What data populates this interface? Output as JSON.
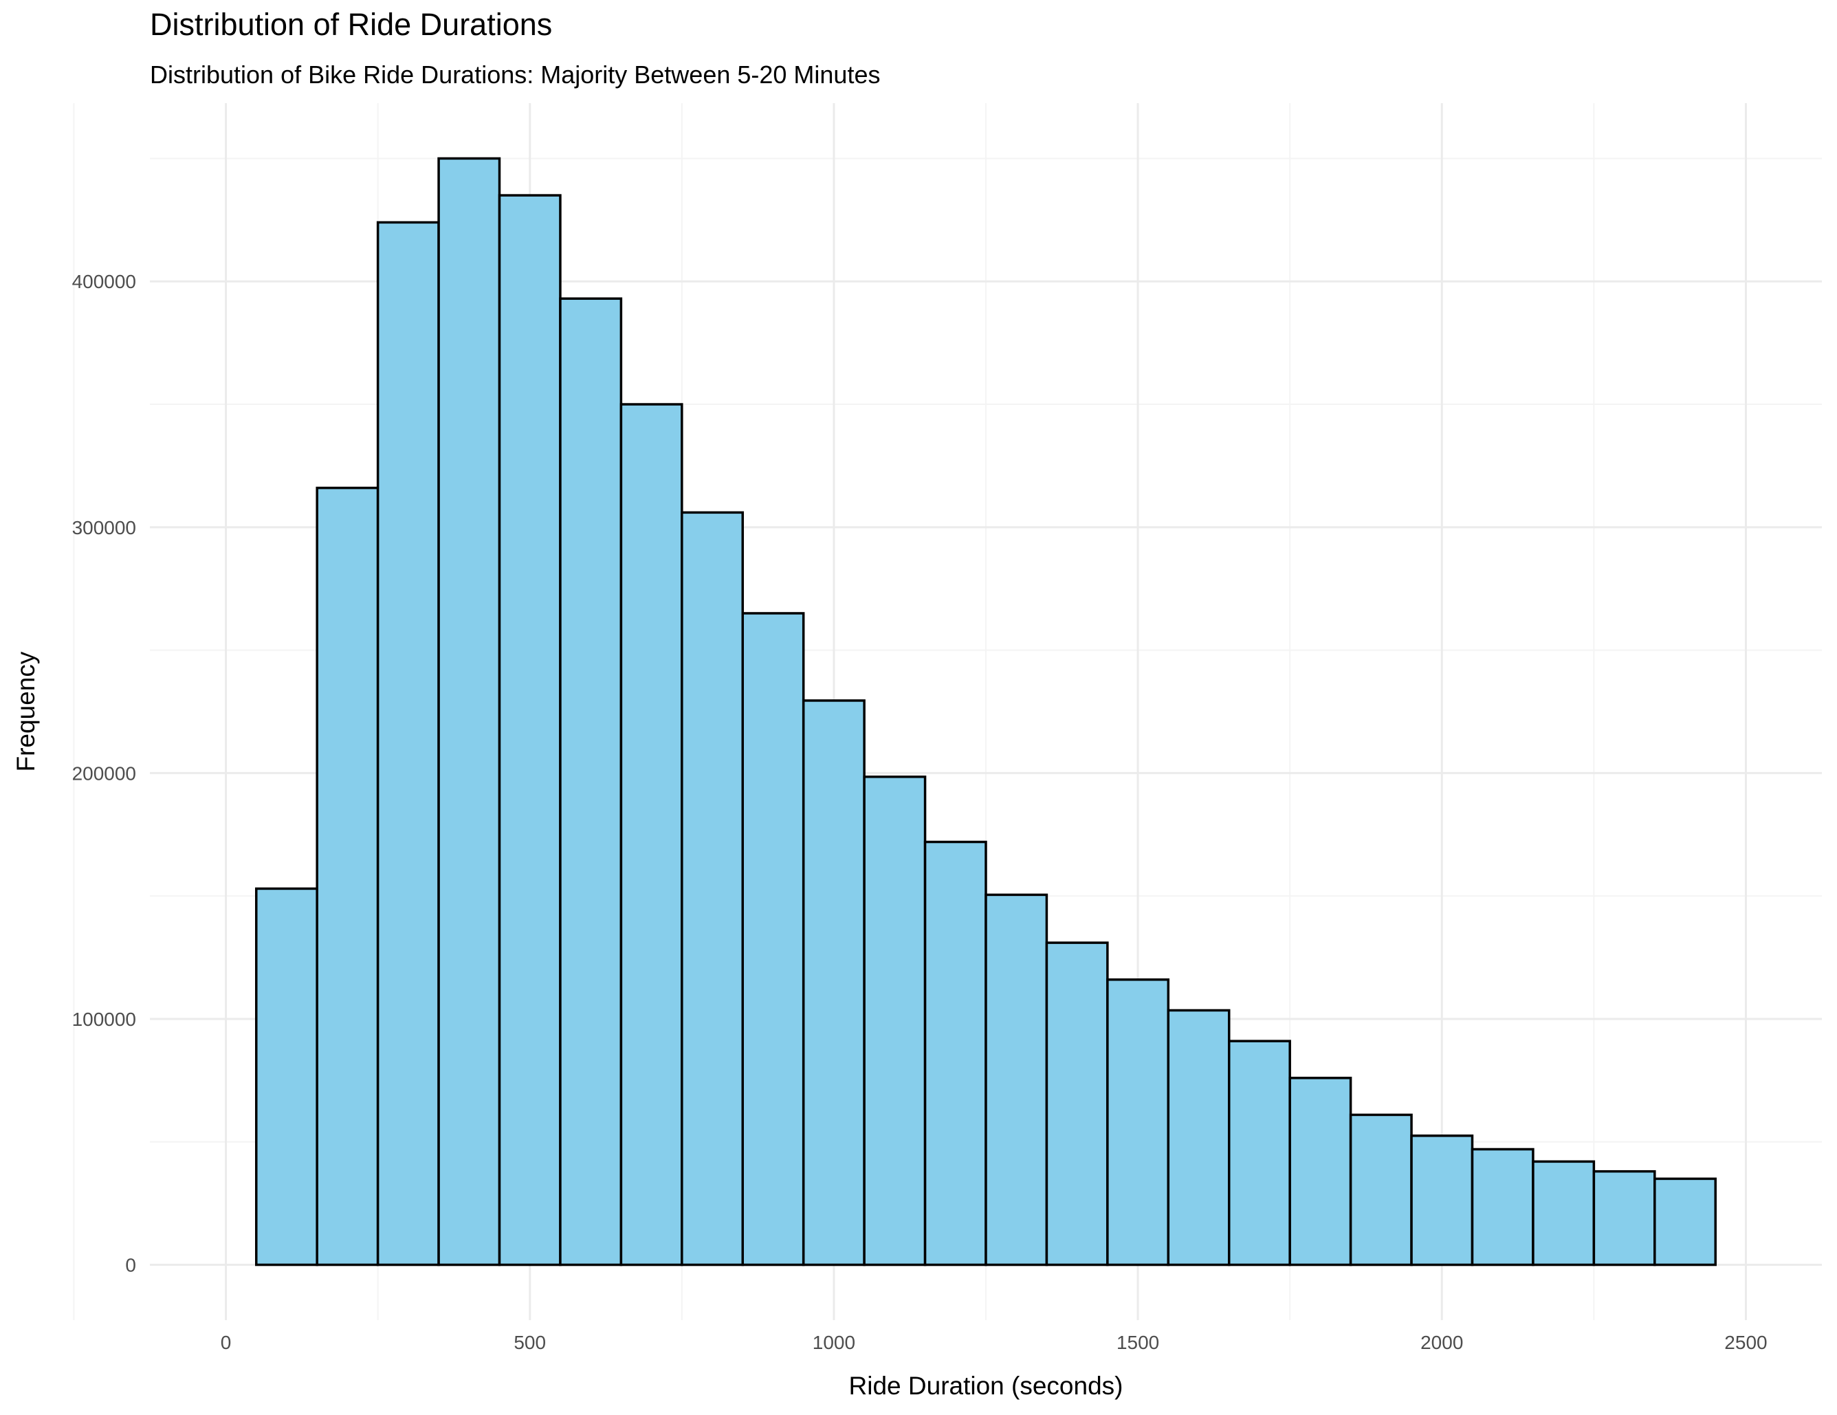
{
  "chart_data": {
    "type": "bar",
    "title": "Distribution of Ride Durations",
    "subtitle": "Distribution of Bike Ride Durations: Majority Between 5-20 Minutes",
    "xlabel": "Ride Duration (seconds)",
    "ylabel": "Frequency",
    "bin_width": 100,
    "bins": [
      {
        "start": 50,
        "end": 150,
        "count": 153000
      },
      {
        "start": 150,
        "end": 250,
        "count": 316000
      },
      {
        "start": 250,
        "end": 350,
        "count": 424000
      },
      {
        "start": 350,
        "end": 450,
        "count": 450000
      },
      {
        "start": 450,
        "end": 550,
        "count": 435000
      },
      {
        "start": 550,
        "end": 650,
        "count": 393000
      },
      {
        "start": 650,
        "end": 750,
        "count": 350000
      },
      {
        "start": 750,
        "end": 850,
        "count": 306000
      },
      {
        "start": 850,
        "end": 950,
        "count": 265000
      },
      {
        "start": 950,
        "end": 1050,
        "count": 229500
      },
      {
        "start": 1050,
        "end": 1150,
        "count": 198500
      },
      {
        "start": 1150,
        "end": 1250,
        "count": 172000
      },
      {
        "start": 1250,
        "end": 1350,
        "count": 150500
      },
      {
        "start": 1350,
        "end": 1450,
        "count": 131000
      },
      {
        "start": 1450,
        "end": 1550,
        "count": 116000
      },
      {
        "start": 1550,
        "end": 1650,
        "count": 103500
      },
      {
        "start": 1650,
        "end": 1750,
        "count": 91000
      },
      {
        "start": 1750,
        "end": 1850,
        "count": 76000
      },
      {
        "start": 1850,
        "end": 1950,
        "count": 61000
      },
      {
        "start": 1950,
        "end": 2050,
        "count": 52500
      },
      {
        "start": 2050,
        "end": 2150,
        "count": 47000
      },
      {
        "start": 2150,
        "end": 2250,
        "count": 42000
      },
      {
        "start": 2250,
        "end": 2350,
        "count": 38000
      },
      {
        "start": 2350,
        "end": 2450,
        "count": 35000
      }
    ],
    "xlim": [
      -125,
      2625
    ],
    "ylim": [
      -22500,
      472500
    ],
    "x_ticks": [
      0,
      500,
      1000,
      1500,
      2000,
      2500
    ],
    "x_tick_labels": [
      "0",
      "500",
      "1000",
      "1500",
      "2000",
      "2500"
    ],
    "y_ticks": [
      0,
      100000,
      200000,
      300000,
      400000
    ],
    "y_tick_labels": [
      "0",
      "100000",
      "200000",
      "300000",
      "400000"
    ],
    "grid": true,
    "legend": "none",
    "colors": {
      "bar_fill": "#87CEEB",
      "bar_stroke": "#000000",
      "grid_major": "#ebebeb",
      "grid_minor": "#f4f4f4"
    }
  }
}
